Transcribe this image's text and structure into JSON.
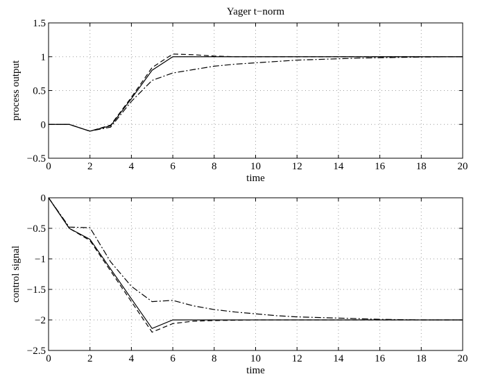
{
  "chart_data": [
    {
      "type": "line",
      "title": "Yager t−norm",
      "xlabel": "time",
      "ylabel": "process output",
      "xlim": [
        0,
        20
      ],
      "ylim": [
        -0.5,
        1.5
      ],
      "xticks": [
        "0",
        "2",
        "4",
        "6",
        "8",
        "10",
        "12",
        "14",
        "16",
        "18",
        "20"
      ],
      "yticks": [
        "−0.5",
        "0",
        "0.5",
        "1",
        "1.5"
      ],
      "grid": true,
      "series": [
        {
          "style": "solid",
          "x": [
            0,
            1,
            2,
            3,
            4,
            5,
            6,
            7,
            8,
            9,
            10,
            12,
            14,
            16,
            18,
            20
          ],
          "y": [
            0,
            0,
            -0.1,
            -0.02,
            0.38,
            0.8,
            1.0,
            1.0,
            1.0,
            1.0,
            1.0,
            1.0,
            1.0,
            1.0,
            1.0,
            1.0
          ]
        },
        {
          "style": "dashed",
          "x": [
            0,
            1,
            2,
            3,
            4,
            5,
            6,
            7,
            8,
            9,
            10,
            12,
            14,
            16,
            18,
            20
          ],
          "y": [
            0,
            0,
            -0.1,
            -0.01,
            0.4,
            0.84,
            1.04,
            1.03,
            1.01,
            1.0,
            1.0,
            1.0,
            1.0,
            1.0,
            1.0,
            1.0
          ]
        },
        {
          "style": "dashdot",
          "x": [
            0,
            1,
            2,
            3,
            4,
            5,
            6,
            7,
            8,
            9,
            10,
            11,
            12,
            13,
            14,
            15,
            16,
            17,
            18,
            19,
            20
          ],
          "y": [
            0,
            0,
            -0.1,
            -0.04,
            0.34,
            0.65,
            0.76,
            0.81,
            0.86,
            0.89,
            0.91,
            0.93,
            0.95,
            0.96,
            0.97,
            0.98,
            0.985,
            0.99,
            0.995,
            0.998,
            1.0
          ]
        }
      ]
    },
    {
      "type": "line",
      "xlabel": "time",
      "ylabel": "control signal",
      "xlim": [
        0,
        20
      ],
      "ylim": [
        -2.5,
        0
      ],
      "xticks": [
        "0",
        "2",
        "4",
        "6",
        "8",
        "10",
        "12",
        "14",
        "16",
        "18",
        "20"
      ],
      "yticks": [
        "−2.5",
        "−2",
        "−1.5",
        "−1",
        "−0.5",
        "0"
      ],
      "grid": true,
      "series": [
        {
          "style": "solid",
          "x": [
            0,
            1,
            2,
            5,
            6,
            7,
            8,
            10,
            12,
            14,
            16,
            18,
            20
          ],
          "y": [
            0,
            -0.5,
            -0.68,
            -2.14,
            -2.0,
            -2.0,
            -2.0,
            -2.0,
            -2.0,
            -2.0,
            -2.0,
            -2.0,
            -2.0
          ]
        },
        {
          "style": "dashed",
          "x": [
            0,
            1,
            2,
            5,
            6,
            7,
            8,
            10,
            12,
            14,
            16,
            18,
            20
          ],
          "y": [
            0,
            -0.5,
            -0.7,
            -2.2,
            -2.06,
            -2.02,
            -2.01,
            -2.0,
            -2.0,
            -2.0,
            -2.0,
            -2.0,
            -2.0
          ]
        },
        {
          "style": "dashdot",
          "x": [
            0,
            1,
            2,
            3,
            4,
            5,
            6,
            7,
            8,
            9,
            10,
            11,
            12,
            13,
            14,
            15,
            16,
            17,
            18,
            19,
            20
          ],
          "y": [
            0,
            -0.48,
            -0.49,
            -1.05,
            -1.45,
            -1.7,
            -1.68,
            -1.77,
            -1.83,
            -1.87,
            -1.9,
            -1.93,
            -1.95,
            -1.96,
            -1.97,
            -1.98,
            -1.99,
            -1.995,
            -2.0,
            -2.0,
            -2.0
          ]
        }
      ]
    }
  ]
}
